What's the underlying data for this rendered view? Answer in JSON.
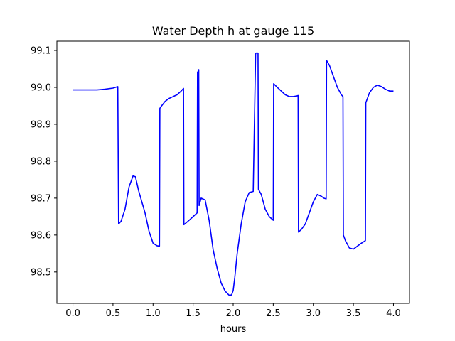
{
  "chart_data": {
    "type": "line",
    "title": "Water Depth h at gauge 115",
    "xlabel": "hours",
    "ylabel": "",
    "xlim": [
      -0.2,
      4.2
    ],
    "ylim": [
      98.415,
      99.125
    ],
    "xticks": [
      0.0,
      0.5,
      1.0,
      1.5,
      2.0,
      2.5,
      3.0,
      3.5,
      4.0
    ],
    "xtick_labels": [
      "0.0",
      "0.5",
      "1.0",
      "1.5",
      "2.0",
      "2.5",
      "3.0",
      "3.5",
      "4.0"
    ],
    "yticks": [
      98.5,
      98.6,
      98.7,
      98.8,
      98.9,
      99.0,
      99.1
    ],
    "ytick_labels": [
      "98.5",
      "98.6",
      "98.7",
      "98.8",
      "98.9",
      "99.0",
      "99.1"
    ],
    "grid": false,
    "series": [
      {
        "color": "#0000ff",
        "x": [
          0.0,
          0.1,
          0.2,
          0.3,
          0.4,
          0.5,
          0.56,
          0.57,
          0.6,
          0.65,
          0.7,
          0.75,
          0.78,
          0.82,
          0.9,
          0.95,
          1.0,
          1.05,
          1.08,
          1.085,
          1.1,
          1.15,
          1.2,
          1.3,
          1.35,
          1.38,
          1.385,
          1.45,
          1.5,
          1.55,
          1.555,
          1.57,
          1.575,
          1.6,
          1.65,
          1.7,
          1.75,
          1.8,
          1.85,
          1.9,
          1.95,
          1.98,
          2.0,
          2.02,
          2.05,
          2.1,
          2.15,
          2.2,
          2.25,
          2.28,
          2.285,
          2.31,
          2.315,
          2.35,
          2.4,
          2.45,
          2.5,
          2.505,
          2.55,
          2.6,
          2.65,
          2.7,
          2.75,
          2.8,
          2.81,
          2.815,
          2.85,
          2.9,
          2.95,
          3.0,
          3.05,
          3.1,
          3.13,
          3.16,
          3.165,
          3.2,
          3.25,
          3.3,
          3.35,
          3.37,
          3.375,
          3.4,
          3.45,
          3.5,
          3.55,
          3.6,
          3.65,
          3.655,
          3.7,
          3.75,
          3.8,
          3.85,
          3.9,
          3.95,
          4.0
        ],
        "values": [
          98.993,
          98.993,
          98.993,
          98.993,
          98.995,
          98.998,
          99.002,
          98.63,
          98.637,
          98.67,
          98.73,
          98.76,
          98.758,
          98.72,
          98.66,
          98.61,
          98.578,
          98.571,
          98.57,
          98.943,
          98.948,
          98.962,
          98.97,
          98.98,
          98.99,
          98.997,
          98.628,
          98.64,
          98.65,
          98.66,
          99.04,
          99.048,
          98.68,
          98.7,
          98.695,
          98.64,
          98.56,
          98.51,
          98.47,
          98.448,
          98.437,
          98.438,
          98.45,
          98.485,
          98.55,
          98.63,
          98.69,
          98.715,
          98.718,
          99.09,
          99.093,
          99.093,
          98.724,
          98.71,
          98.67,
          98.65,
          98.64,
          99.01,
          99.0,
          98.99,
          98.98,
          98.975,
          98.975,
          98.977,
          98.978,
          98.608,
          98.615,
          98.63,
          98.66,
          98.69,
          98.71,
          98.705,
          98.7,
          98.698,
          99.073,
          99.06,
          99.03,
          99.0,
          98.98,
          98.975,
          98.6,
          98.585,
          98.565,
          98.562,
          98.57,
          98.578,
          98.585,
          98.958,
          98.985,
          99.0,
          99.006,
          99.002,
          98.995,
          98.99,
          98.99
        ]
      }
    ]
  }
}
